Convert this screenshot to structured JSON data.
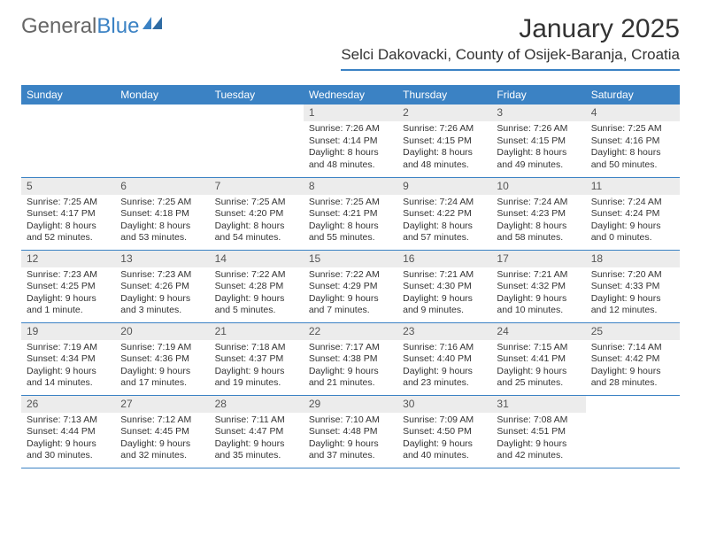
{
  "logo": {
    "text1": "General",
    "text2": "Blue"
  },
  "title": "January 2025",
  "location": "Selci Dakovacki, County of Osijek-Baranja, Croatia",
  "colors": {
    "accent": "#3b82c4",
    "daynum_bg": "#ececec",
    "text": "#333333"
  },
  "weekdays": [
    "Sunday",
    "Monday",
    "Tuesday",
    "Wednesday",
    "Thursday",
    "Friday",
    "Saturday"
  ],
  "weeks": [
    [
      null,
      null,
      null,
      {
        "n": "1",
        "sr": "Sunrise: 7:26 AM",
        "ss": "Sunset: 4:14 PM",
        "d1": "Daylight: 8 hours",
        "d2": "and 48 minutes."
      },
      {
        "n": "2",
        "sr": "Sunrise: 7:26 AM",
        "ss": "Sunset: 4:15 PM",
        "d1": "Daylight: 8 hours",
        "d2": "and 48 minutes."
      },
      {
        "n": "3",
        "sr": "Sunrise: 7:26 AM",
        "ss": "Sunset: 4:15 PM",
        "d1": "Daylight: 8 hours",
        "d2": "and 49 minutes."
      },
      {
        "n": "4",
        "sr": "Sunrise: 7:25 AM",
        "ss": "Sunset: 4:16 PM",
        "d1": "Daylight: 8 hours",
        "d2": "and 50 minutes."
      }
    ],
    [
      {
        "n": "5",
        "sr": "Sunrise: 7:25 AM",
        "ss": "Sunset: 4:17 PM",
        "d1": "Daylight: 8 hours",
        "d2": "and 52 minutes."
      },
      {
        "n": "6",
        "sr": "Sunrise: 7:25 AM",
        "ss": "Sunset: 4:18 PM",
        "d1": "Daylight: 8 hours",
        "d2": "and 53 minutes."
      },
      {
        "n": "7",
        "sr": "Sunrise: 7:25 AM",
        "ss": "Sunset: 4:20 PM",
        "d1": "Daylight: 8 hours",
        "d2": "and 54 minutes."
      },
      {
        "n": "8",
        "sr": "Sunrise: 7:25 AM",
        "ss": "Sunset: 4:21 PM",
        "d1": "Daylight: 8 hours",
        "d2": "and 55 minutes."
      },
      {
        "n": "9",
        "sr": "Sunrise: 7:24 AM",
        "ss": "Sunset: 4:22 PM",
        "d1": "Daylight: 8 hours",
        "d2": "and 57 minutes."
      },
      {
        "n": "10",
        "sr": "Sunrise: 7:24 AM",
        "ss": "Sunset: 4:23 PM",
        "d1": "Daylight: 8 hours",
        "d2": "and 58 minutes."
      },
      {
        "n": "11",
        "sr": "Sunrise: 7:24 AM",
        "ss": "Sunset: 4:24 PM",
        "d1": "Daylight: 9 hours",
        "d2": "and 0 minutes."
      }
    ],
    [
      {
        "n": "12",
        "sr": "Sunrise: 7:23 AM",
        "ss": "Sunset: 4:25 PM",
        "d1": "Daylight: 9 hours",
        "d2": "and 1 minute."
      },
      {
        "n": "13",
        "sr": "Sunrise: 7:23 AM",
        "ss": "Sunset: 4:26 PM",
        "d1": "Daylight: 9 hours",
        "d2": "and 3 minutes."
      },
      {
        "n": "14",
        "sr": "Sunrise: 7:22 AM",
        "ss": "Sunset: 4:28 PM",
        "d1": "Daylight: 9 hours",
        "d2": "and 5 minutes."
      },
      {
        "n": "15",
        "sr": "Sunrise: 7:22 AM",
        "ss": "Sunset: 4:29 PM",
        "d1": "Daylight: 9 hours",
        "d2": "and 7 minutes."
      },
      {
        "n": "16",
        "sr": "Sunrise: 7:21 AM",
        "ss": "Sunset: 4:30 PM",
        "d1": "Daylight: 9 hours",
        "d2": "and 9 minutes."
      },
      {
        "n": "17",
        "sr": "Sunrise: 7:21 AM",
        "ss": "Sunset: 4:32 PM",
        "d1": "Daylight: 9 hours",
        "d2": "and 10 minutes."
      },
      {
        "n": "18",
        "sr": "Sunrise: 7:20 AM",
        "ss": "Sunset: 4:33 PM",
        "d1": "Daylight: 9 hours",
        "d2": "and 12 minutes."
      }
    ],
    [
      {
        "n": "19",
        "sr": "Sunrise: 7:19 AM",
        "ss": "Sunset: 4:34 PM",
        "d1": "Daylight: 9 hours",
        "d2": "and 14 minutes."
      },
      {
        "n": "20",
        "sr": "Sunrise: 7:19 AM",
        "ss": "Sunset: 4:36 PM",
        "d1": "Daylight: 9 hours",
        "d2": "and 17 minutes."
      },
      {
        "n": "21",
        "sr": "Sunrise: 7:18 AM",
        "ss": "Sunset: 4:37 PM",
        "d1": "Daylight: 9 hours",
        "d2": "and 19 minutes."
      },
      {
        "n": "22",
        "sr": "Sunrise: 7:17 AM",
        "ss": "Sunset: 4:38 PM",
        "d1": "Daylight: 9 hours",
        "d2": "and 21 minutes."
      },
      {
        "n": "23",
        "sr": "Sunrise: 7:16 AM",
        "ss": "Sunset: 4:40 PM",
        "d1": "Daylight: 9 hours",
        "d2": "and 23 minutes."
      },
      {
        "n": "24",
        "sr": "Sunrise: 7:15 AM",
        "ss": "Sunset: 4:41 PM",
        "d1": "Daylight: 9 hours",
        "d2": "and 25 minutes."
      },
      {
        "n": "25",
        "sr": "Sunrise: 7:14 AM",
        "ss": "Sunset: 4:42 PM",
        "d1": "Daylight: 9 hours",
        "d2": "and 28 minutes."
      }
    ],
    [
      {
        "n": "26",
        "sr": "Sunrise: 7:13 AM",
        "ss": "Sunset: 4:44 PM",
        "d1": "Daylight: 9 hours",
        "d2": "and 30 minutes."
      },
      {
        "n": "27",
        "sr": "Sunrise: 7:12 AM",
        "ss": "Sunset: 4:45 PM",
        "d1": "Daylight: 9 hours",
        "d2": "and 32 minutes."
      },
      {
        "n": "28",
        "sr": "Sunrise: 7:11 AM",
        "ss": "Sunset: 4:47 PM",
        "d1": "Daylight: 9 hours",
        "d2": "and 35 minutes."
      },
      {
        "n": "29",
        "sr": "Sunrise: 7:10 AM",
        "ss": "Sunset: 4:48 PM",
        "d1": "Daylight: 9 hours",
        "d2": "and 37 minutes."
      },
      {
        "n": "30",
        "sr": "Sunrise: 7:09 AM",
        "ss": "Sunset: 4:50 PM",
        "d1": "Daylight: 9 hours",
        "d2": "and 40 minutes."
      },
      {
        "n": "31",
        "sr": "Sunrise: 7:08 AM",
        "ss": "Sunset: 4:51 PM",
        "d1": "Daylight: 9 hours",
        "d2": "and 42 minutes."
      },
      null
    ]
  ]
}
